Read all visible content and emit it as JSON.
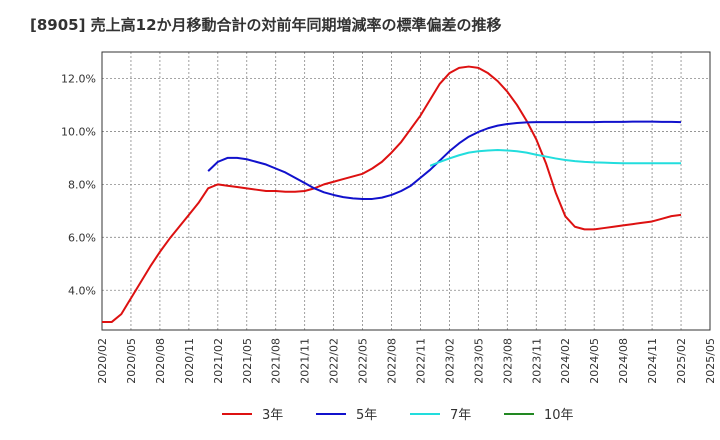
{
  "chart_data": {
    "type": "line",
    "title": "[8905]  売上高12か月移動合計の対前年同期増減率の標準偏差の推移",
    "xlabel": "",
    "ylabel": "",
    "ylim": [
      2.5,
      13.0
    ],
    "y_ticks": [
      4.0,
      6.0,
      8.0,
      10.0,
      12.0
    ],
    "y_tick_labels": [
      "4.0%",
      "6.0%",
      "8.0%",
      "10.0%",
      "12.0%"
    ],
    "x_ticks": [
      "2020/02",
      "2020/05",
      "2020/08",
      "2020/11",
      "2021/02",
      "2021/05",
      "2021/08",
      "2021/11",
      "2022/02",
      "2022/05",
      "2022/08",
      "2022/11",
      "2023/02",
      "2023/05",
      "2023/08",
      "2023/11",
      "2024/02",
      "2024/05",
      "2024/08",
      "2024/11",
      "2025/02",
      "2025/05"
    ],
    "grid": true,
    "legend_position": "bottom",
    "series": [
      {
        "name": "3年",
        "color": "#dd1111",
        "x": [
          "2020/02",
          "2020/03",
          "2020/04",
          "2020/05",
          "2020/06",
          "2020/07",
          "2020/08",
          "2020/09",
          "2020/10",
          "2020/11",
          "2020/12",
          "2021/01",
          "2021/02",
          "2021/03",
          "2021/04",
          "2021/05",
          "2021/06",
          "2021/07",
          "2021/08",
          "2021/09",
          "2021/10",
          "2021/11",
          "2021/12",
          "2022/01",
          "2022/02",
          "2022/03",
          "2022/04",
          "2022/05",
          "2022/06",
          "2022/07",
          "2022/08",
          "2022/09",
          "2022/10",
          "2022/11",
          "2022/12",
          "2023/01",
          "2023/02",
          "2023/03",
          "2023/04",
          "2023/05",
          "2023/06",
          "2023/07",
          "2023/08",
          "2023/09",
          "2023/10",
          "2023/11",
          "2023/12",
          "2024/01",
          "2024/02",
          "2024/03",
          "2024/04",
          "2024/05",
          "2024/06",
          "2024/07",
          "2024/08",
          "2024/09",
          "2024/10",
          "2024/11",
          "2024/12",
          "2025/01",
          "2025/02"
        ],
        "values": [
          2.8,
          2.8,
          3.1,
          3.7,
          4.3,
          4.9,
          5.45,
          5.95,
          6.4,
          6.85,
          7.3,
          7.85,
          8.0,
          7.95,
          7.9,
          7.85,
          7.8,
          7.75,
          7.75,
          7.72,
          7.72,
          7.75,
          7.85,
          8.0,
          8.1,
          8.2,
          8.3,
          8.4,
          8.6,
          8.85,
          9.2,
          9.6,
          10.1,
          10.6,
          11.2,
          11.8,
          12.2,
          12.4,
          12.45,
          12.4,
          12.2,
          11.9,
          11.5,
          11.0,
          10.4,
          9.7,
          8.8,
          7.7,
          6.8,
          6.4,
          6.3,
          6.3,
          6.35,
          6.4,
          6.45,
          6.5,
          6.55,
          6.6,
          6.7,
          6.8,
          6.85
        ]
      },
      {
        "name": "5年",
        "color": "#1111cc",
        "x": [
          "2021/01",
          "2021/02",
          "2021/03",
          "2021/04",
          "2021/05",
          "2021/06",
          "2021/07",
          "2021/08",
          "2021/09",
          "2021/10",
          "2021/11",
          "2021/12",
          "2022/01",
          "2022/02",
          "2022/03",
          "2022/04",
          "2022/05",
          "2022/06",
          "2022/07",
          "2022/08",
          "2022/09",
          "2022/10",
          "2022/11",
          "2022/12",
          "2023/01",
          "2023/02",
          "2023/03",
          "2023/04",
          "2023/05",
          "2023/06",
          "2023/07",
          "2023/08",
          "2023/09",
          "2023/10",
          "2023/11",
          "2023/12",
          "2024/01",
          "2024/02",
          "2024/03",
          "2024/04",
          "2024/05",
          "2024/06",
          "2024/07",
          "2024/08",
          "2024/09",
          "2024/10",
          "2024/11",
          "2024/12",
          "2025/01",
          "2025/02"
        ],
        "values": [
          8.5,
          8.85,
          9.0,
          9.0,
          8.95,
          8.85,
          8.75,
          8.6,
          8.45,
          8.25,
          8.05,
          7.85,
          7.7,
          7.6,
          7.52,
          7.47,
          7.45,
          7.45,
          7.5,
          7.6,
          7.75,
          7.95,
          8.25,
          8.55,
          8.9,
          9.25,
          9.55,
          9.8,
          9.98,
          10.12,
          10.22,
          10.28,
          10.32,
          10.34,
          10.35,
          10.35,
          10.35,
          10.35,
          10.35,
          10.35,
          10.35,
          10.36,
          10.36,
          10.36,
          10.37,
          10.37,
          10.37,
          10.36,
          10.36,
          10.35
        ]
      },
      {
        "name": "7年",
        "color": "#22dddd",
        "x": [
          "2022/12",
          "2023/01",
          "2023/02",
          "2023/03",
          "2023/04",
          "2023/05",
          "2023/06",
          "2023/07",
          "2023/08",
          "2023/09",
          "2023/10",
          "2023/11",
          "2023/12",
          "2024/01",
          "2024/02",
          "2024/03",
          "2024/04",
          "2024/05",
          "2024/06",
          "2024/07",
          "2024/08",
          "2024/09",
          "2024/10",
          "2024/11",
          "2024/12",
          "2025/01",
          "2025/02"
        ],
        "values": [
          8.7,
          8.85,
          8.98,
          9.1,
          9.2,
          9.25,
          9.28,
          9.3,
          9.28,
          9.25,
          9.2,
          9.12,
          9.05,
          8.98,
          8.92,
          8.88,
          8.85,
          8.83,
          8.82,
          8.81,
          8.8,
          8.8,
          8.8,
          8.8,
          8.8,
          8.8,
          8.8
        ]
      },
      {
        "name": "10年",
        "color": "#228822",
        "x": [],
        "values": []
      }
    ]
  }
}
